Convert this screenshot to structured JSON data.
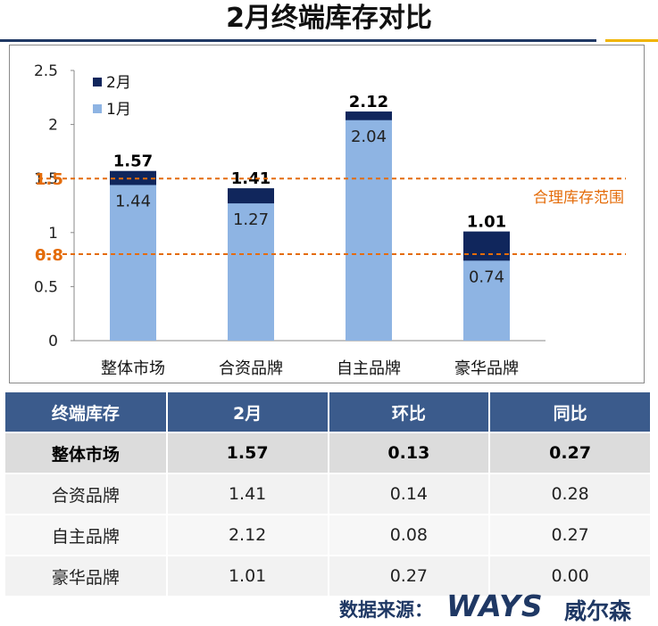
{
  "page": {
    "title": "2月终端库存对比",
    "source_label": "数据来源：",
    "logo_text": "WAYS",
    "logo_cn": "威尔森"
  },
  "chart_data": {
    "type": "bar",
    "categories": [
      "整体市场",
      "合资品牌",
      "自主品牌",
      "豪华品牌"
    ],
    "series": [
      {
        "name": "1月",
        "values": [
          1.44,
          1.27,
          2.04,
          0.74
        ],
        "color": "#8eb4e3"
      },
      {
        "name": "2月",
        "values": [
          1.57,
          1.41,
          2.12,
          1.01
        ],
        "color": "#10265c"
      }
    ],
    "ylim": [
      0,
      2.5
    ],
    "yticks": [
      "0",
      "0.5",
      "1",
      "1.5",
      "2",
      "2.5"
    ],
    "reference_lines": [
      {
        "value": 1.5,
        "label": "1.5",
        "color": "#e46c0a"
      },
      {
        "value": 0.8,
        "label": "0.8",
        "color": "#e46c0a"
      }
    ],
    "reference_band_label": "合理库存范围",
    "legend_position": "top-left",
    "grid": false
  },
  "table": {
    "headers": [
      "终端库存",
      "2月",
      "环比",
      "同比"
    ],
    "rows": [
      [
        "整体市场",
        "1.57",
        "0.13",
        "0.27"
      ],
      [
        "合资品牌",
        "1.41",
        "0.14",
        "0.28"
      ],
      [
        "自主品牌",
        "2.12",
        "0.08",
        "0.27"
      ],
      [
        "豪华品牌",
        "1.01",
        "0.27",
        "0.00"
      ]
    ]
  }
}
